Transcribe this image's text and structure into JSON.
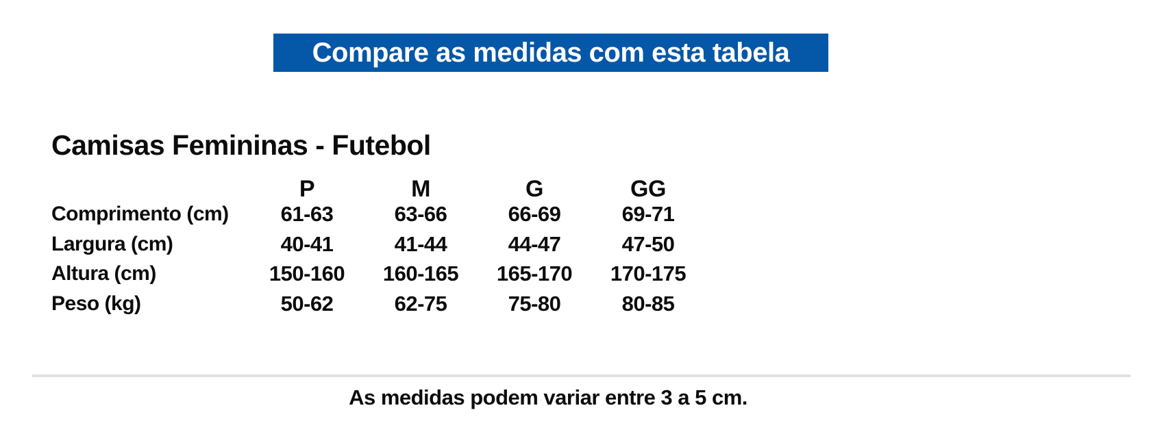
{
  "banner": {
    "text": "Compare as medidas com esta tabela",
    "bg_color": "#0557a8",
    "text_color": "#ffffff"
  },
  "section": {
    "title": "Camisas Femininas - Futebol"
  },
  "size_table": {
    "columns": [
      "P",
      "M",
      "G",
      "GG"
    ],
    "rows": [
      {
        "label": "Comprimento (cm)",
        "values": [
          "61-63",
          "63-66",
          "66-69",
          "69-71"
        ]
      },
      {
        "label": "Largura (cm)",
        "values": [
          "40-41",
          "41-44",
          "44-47",
          "47-50"
        ]
      },
      {
        "label": "Altura (cm)",
        "values": [
          "150-160",
          "160-165",
          "165-170",
          "170-175"
        ]
      },
      {
        "label": "Peso (kg)",
        "values": [
          "50-62",
          "62-75",
          "75-80",
          "80-85"
        ]
      }
    ]
  },
  "divider_color": "#e1e1e1",
  "footer": {
    "note": "As medidas podem variar entre 3 a 5 cm."
  }
}
